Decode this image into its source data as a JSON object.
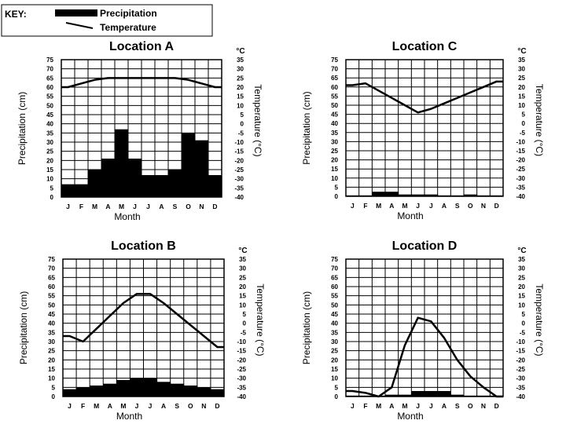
{
  "key": {
    "label": "KEY:",
    "precipitation_label": "Precipitation",
    "temperature_label": "Temperature"
  },
  "colors": {
    "bar": "#000000",
    "line": "#000000",
    "grid": "#000000"
  },
  "chart_data": [
    {
      "type": "bar+line",
      "title": "Location A",
      "xlabel": "Month",
      "ylabel": "Precipitation (cm)",
      "y2label": "Temperature (°C)",
      "unit_label": "°C",
      "categories": [
        "J",
        "F",
        "M",
        "A",
        "M",
        "J",
        "J",
        "A",
        "S",
        "O",
        "N",
        "D"
      ],
      "ylim": [
        0,
        75
      ],
      "y2lim": [
        -40,
        35
      ],
      "yticks": [
        0,
        5,
        10,
        15,
        20,
        25,
        30,
        35,
        40,
        45,
        50,
        55,
        60,
        65,
        70,
        75
      ],
      "y2ticks": [
        -40,
        -35,
        -30,
        -25,
        -20,
        -15,
        -10,
        -5,
        0,
        5,
        10,
        15,
        20,
        25,
        30,
        35
      ],
      "series": [
        {
          "name": "Precipitation",
          "kind": "bar",
          "values": [
            7,
            7,
            15,
            21,
            37,
            21,
            12,
            12,
            15,
            35,
            31,
            12
          ]
        },
        {
          "name": "Temperature",
          "kind": "line",
          "values": [
            20,
            22,
            24,
            25,
            25,
            25,
            25,
            25,
            25,
            24,
            22,
            20
          ]
        }
      ]
    },
    {
      "type": "bar+line",
      "title": "Location C",
      "xlabel": "Month",
      "ylabel": "Precipitation (cm)",
      "y2label": "Temperature (°C)",
      "unit_label": "°C",
      "categories": [
        "J",
        "F",
        "M",
        "A",
        "M",
        "J",
        "J",
        "A",
        "S",
        "O",
        "N",
        "D"
      ],
      "ylim": [
        0,
        75
      ],
      "y2lim": [
        -40,
        35
      ],
      "yticks": [
        0,
        5,
        10,
        15,
        20,
        25,
        30,
        35,
        40,
        45,
        50,
        55,
        60,
        65,
        70,
        75
      ],
      "y2ticks": [
        -40,
        -35,
        -30,
        -25,
        -20,
        -15,
        -10,
        -5,
        0,
        5,
        10,
        15,
        20,
        25,
        30,
        35
      ],
      "series": [
        {
          "name": "Precipitation",
          "kind": "bar",
          "values": [
            0.5,
            0.5,
            2.5,
            2.5,
            1,
            1,
            1,
            0.5,
            0.5,
            1,
            0.5,
            0.5
          ]
        },
        {
          "name": "Temperature",
          "kind": "line",
          "values": [
            21,
            22,
            18,
            14,
            10,
            6,
            8,
            11,
            14,
            17,
            20,
            23
          ]
        }
      ]
    },
    {
      "type": "bar+line",
      "title": "Location B",
      "xlabel": "Month",
      "ylabel": "Precipitation (cm)",
      "y2label": "Temperature (°C)",
      "unit_label": "°C",
      "categories": [
        "J",
        "F",
        "M",
        "A",
        "M",
        "J",
        "J",
        "A",
        "S",
        "O",
        "N",
        "D"
      ],
      "ylim": [
        0,
        75
      ],
      "y2lim": [
        -40,
        35
      ],
      "yticks": [
        0,
        5,
        10,
        15,
        20,
        25,
        30,
        35,
        40,
        45,
        50,
        55,
        60,
        65,
        70,
        75
      ],
      "y2ticks": [
        -40,
        -35,
        -30,
        -25,
        -20,
        -15,
        -10,
        -5,
        0,
        5,
        10,
        15,
        20,
        25,
        30,
        35
      ],
      "series": [
        {
          "name": "Precipitation",
          "kind": "bar",
          "values": [
            4,
            5,
            6,
            7,
            9,
            10,
            10,
            8,
            7,
            6,
            5,
            4
          ]
        },
        {
          "name": "Temperature",
          "kind": "line",
          "values": [
            -7,
            -10,
            -3,
            4,
            11,
            16,
            16,
            11,
            5,
            -1,
            -7,
            -13
          ]
        }
      ]
    },
    {
      "type": "bar+line",
      "title": "Location D",
      "xlabel": "Month",
      "ylabel": "Precipitation (cm)",
      "y2label": "Temperature (°C)",
      "unit_label": "°C",
      "categories": [
        "J",
        "F",
        "M",
        "A",
        "M",
        "J",
        "J",
        "A",
        "S",
        "O",
        "N",
        "D"
      ],
      "ylim": [
        0,
        75
      ],
      "y2lim": [
        -40,
        35
      ],
      "yticks": [
        0,
        5,
        10,
        15,
        20,
        25,
        30,
        35,
        40,
        45,
        50,
        55,
        60,
        65,
        70,
        75
      ],
      "y2ticks": [
        -40,
        -35,
        -30,
        -25,
        -20,
        -15,
        -10,
        -5,
        0,
        5,
        10,
        15,
        20,
        25,
        30,
        35
      ],
      "series": [
        {
          "name": "Precipitation",
          "kind": "bar",
          "values": [
            0.5,
            0.5,
            0.5,
            1,
            1,
            3,
            3,
            3,
            1,
            0.5,
            0.5,
            0.5
          ]
        },
        {
          "name": "Temperature",
          "kind": "line",
          "values": [
            -37,
            -38,
            -40,
            -35,
            -12,
            3,
            1,
            -8,
            -20,
            -29,
            -35,
            -40
          ]
        }
      ]
    }
  ]
}
